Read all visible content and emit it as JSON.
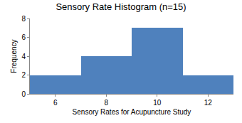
{
  "chart_data": {
    "type": "histogram",
    "title": "Sensory Rate Histogram (n=15)",
    "x_label": "Sensory Rates for Acupuncture Study",
    "y_label": "Frequency",
    "bins": [
      5,
      7,
      9,
      11,
      13
    ],
    "values": [
      2,
      4,
      7,
      2
    ],
    "color": "#4f81bd",
    "xlim": [
      5,
      13
    ],
    "xticks": [
      6,
      8,
      10,
      12
    ],
    "ylim": [
      0,
      8
    ],
    "yticks": [
      0,
      2,
      4,
      6,
      8
    ],
    "grid": false
  }
}
